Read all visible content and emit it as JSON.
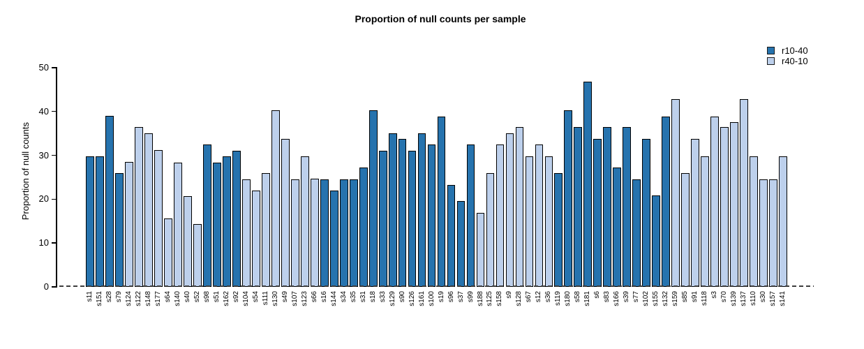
{
  "title": "Proportion of null counts per sample",
  "legend": [
    {
      "label": "r10-40",
      "color": "#2673ae"
    },
    {
      "label": "r40-10",
      "color": "#bdd0ec"
    }
  ],
  "colors": {
    "bar_border": "#000000",
    "baseline_dash": "#3d3d3d",
    "series": {
      "r10-40": "#2673ae",
      "r40-10": "#bdd0ec"
    }
  },
  "chart_data": {
    "type": "bar",
    "title": "Proportion of null counts per sample",
    "xlabel": "",
    "ylabel": "Proportion of null counts",
    "ylim": [
      0,
      50
    ],
    "yticks": [
      0,
      10,
      20,
      30,
      40,
      50
    ],
    "grid": false,
    "legend_position": "top-right",
    "baseline_style": "dashed",
    "series_names": [
      "r10-40",
      "r40-10"
    ],
    "samples": [
      {
        "name": "s11",
        "value": 29.8,
        "series": "r10-40"
      },
      {
        "name": "s151",
        "value": 29.8,
        "series": "r10-40"
      },
      {
        "name": "s28",
        "value": 39.0,
        "series": "r10-40"
      },
      {
        "name": "s79",
        "value": 25.9,
        "series": "r10-40"
      },
      {
        "name": "s124",
        "value": 28.5,
        "series": "r40-10"
      },
      {
        "name": "s122",
        "value": 36.4,
        "series": "r40-10"
      },
      {
        "name": "s148",
        "value": 35.0,
        "series": "r40-10"
      },
      {
        "name": "s177",
        "value": 31.2,
        "series": "r40-10"
      },
      {
        "name": "s64",
        "value": 15.6,
        "series": "r40-10"
      },
      {
        "name": "s140",
        "value": 28.4,
        "series": "r40-10"
      },
      {
        "name": "s40",
        "value": 20.7,
        "series": "r40-10"
      },
      {
        "name": "s52",
        "value": 14.3,
        "series": "r40-10"
      },
      {
        "name": "s98",
        "value": 32.4,
        "series": "r10-40"
      },
      {
        "name": "s51",
        "value": 28.4,
        "series": "r10-40"
      },
      {
        "name": "s162",
        "value": 29.8,
        "series": "r10-40"
      },
      {
        "name": "s92",
        "value": 31.1,
        "series": "r10-40"
      },
      {
        "name": "s104",
        "value": 24.5,
        "series": "r40-10"
      },
      {
        "name": "s54",
        "value": 22.0,
        "series": "r40-10"
      },
      {
        "name": "s111",
        "value": 26.0,
        "series": "r40-10"
      },
      {
        "name": "s130",
        "value": 40.2,
        "series": "r40-10"
      },
      {
        "name": "s49",
        "value": 33.8,
        "series": "r40-10"
      },
      {
        "name": "s107",
        "value": 24.5,
        "series": "r40-10"
      },
      {
        "name": "s123",
        "value": 29.8,
        "series": "r40-10"
      },
      {
        "name": "s66",
        "value": 24.6,
        "series": "r40-10"
      },
      {
        "name": "s16",
        "value": 24.5,
        "series": "r10-40"
      },
      {
        "name": "s144",
        "value": 22.0,
        "series": "r10-40"
      },
      {
        "name": "s34",
        "value": 24.5,
        "series": "r10-40"
      },
      {
        "name": "s35",
        "value": 24.5,
        "series": "r10-40"
      },
      {
        "name": "s31",
        "value": 27.2,
        "series": "r10-40"
      },
      {
        "name": "s18",
        "value": 40.2,
        "series": "r10-40"
      },
      {
        "name": "s33",
        "value": 31.1,
        "series": "r10-40"
      },
      {
        "name": "s129",
        "value": 35.0,
        "series": "r10-40"
      },
      {
        "name": "s90",
        "value": 33.8,
        "series": "r10-40"
      },
      {
        "name": "s126",
        "value": 31.1,
        "series": "r10-40"
      },
      {
        "name": "s161",
        "value": 35.0,
        "series": "r10-40"
      },
      {
        "name": "s100",
        "value": 32.4,
        "series": "r10-40"
      },
      {
        "name": "s19",
        "value": 38.9,
        "series": "r10-40"
      },
      {
        "name": "s96",
        "value": 23.3,
        "series": "r10-40"
      },
      {
        "name": "s37",
        "value": 19.5,
        "series": "r10-40"
      },
      {
        "name": "s99",
        "value": 32.4,
        "series": "r10-40"
      },
      {
        "name": "s188",
        "value": 16.8,
        "series": "r40-10"
      },
      {
        "name": "s125",
        "value": 26.0,
        "series": "r40-10"
      },
      {
        "name": "s158",
        "value": 32.4,
        "series": "r40-10"
      },
      {
        "name": "s9",
        "value": 35.0,
        "series": "r40-10"
      },
      {
        "name": "s128",
        "value": 36.4,
        "series": "r40-10"
      },
      {
        "name": "s67",
        "value": 29.8,
        "series": "r40-10"
      },
      {
        "name": "s12",
        "value": 32.4,
        "series": "r40-10"
      },
      {
        "name": "s36",
        "value": 29.8,
        "series": "r40-10"
      },
      {
        "name": "s119",
        "value": 26.0,
        "series": "r10-40"
      },
      {
        "name": "s180",
        "value": 40.2,
        "series": "r10-40"
      },
      {
        "name": "s58",
        "value": 36.4,
        "series": "r10-40"
      },
      {
        "name": "s181",
        "value": 46.8,
        "series": "r10-40"
      },
      {
        "name": "s6",
        "value": 33.8,
        "series": "r10-40"
      },
      {
        "name": "s83",
        "value": 36.4,
        "series": "r10-40"
      },
      {
        "name": "s166",
        "value": 27.2,
        "series": "r10-40"
      },
      {
        "name": "s39",
        "value": 36.4,
        "series": "r10-40"
      },
      {
        "name": "s77",
        "value": 24.5,
        "series": "r10-40"
      },
      {
        "name": "s102",
        "value": 33.8,
        "series": "r10-40"
      },
      {
        "name": "s155",
        "value": 20.8,
        "series": "r10-40"
      },
      {
        "name": "s132",
        "value": 38.9,
        "series": "r10-40"
      },
      {
        "name": "s159",
        "value": 42.8,
        "series": "r40-10"
      },
      {
        "name": "s85",
        "value": 26.0,
        "series": "r40-10"
      },
      {
        "name": "s91",
        "value": 33.8,
        "series": "r40-10"
      },
      {
        "name": "s118",
        "value": 29.8,
        "series": "r40-10"
      },
      {
        "name": "s3",
        "value": 38.9,
        "series": "r40-10"
      },
      {
        "name": "s70",
        "value": 36.4,
        "series": "r40-10"
      },
      {
        "name": "s139",
        "value": 37.6,
        "series": "r40-10"
      },
      {
        "name": "s137",
        "value": 42.8,
        "series": "r40-10"
      },
      {
        "name": "s110",
        "value": 29.8,
        "series": "r40-10"
      },
      {
        "name": "s30",
        "value": 24.5,
        "series": "r40-10"
      },
      {
        "name": "s157",
        "value": 24.5,
        "series": "r40-10"
      },
      {
        "name": "s141",
        "value": 29.8,
        "series": "r40-10"
      }
    ]
  }
}
